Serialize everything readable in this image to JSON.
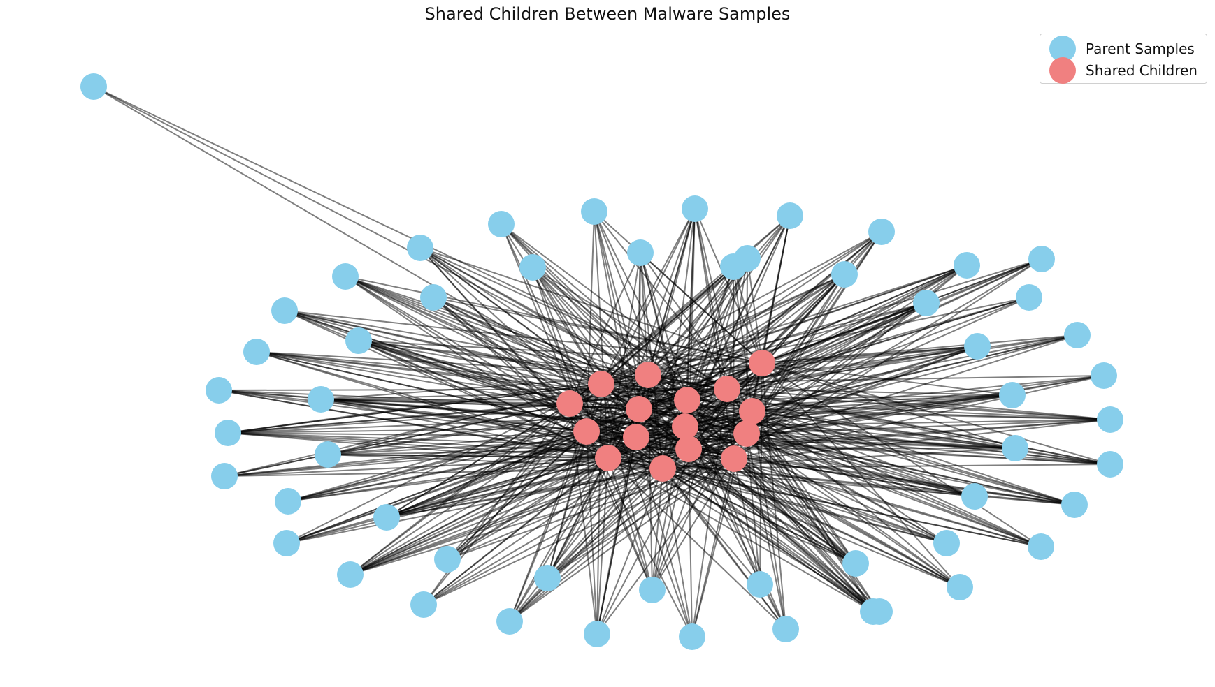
{
  "title": "Shared Children Between Malware Samples",
  "legend": [
    {
      "label": "Parent Samples",
      "color": "#87CEEB"
    },
    {
      "label": "Shared Children",
      "color": "#F08080"
    }
  ],
  "colors": {
    "parent": "#87CEEB",
    "child": "#F08080",
    "edge": "#000000"
  },
  "chart_data": {
    "type": "network",
    "title": "Shared Children Between Malware Samples",
    "legend_placement": "top-right",
    "node_groups": [
      "Parent Samples",
      "Shared Children"
    ],
    "parent_count": 54,
    "child_count": 16
  }
}
